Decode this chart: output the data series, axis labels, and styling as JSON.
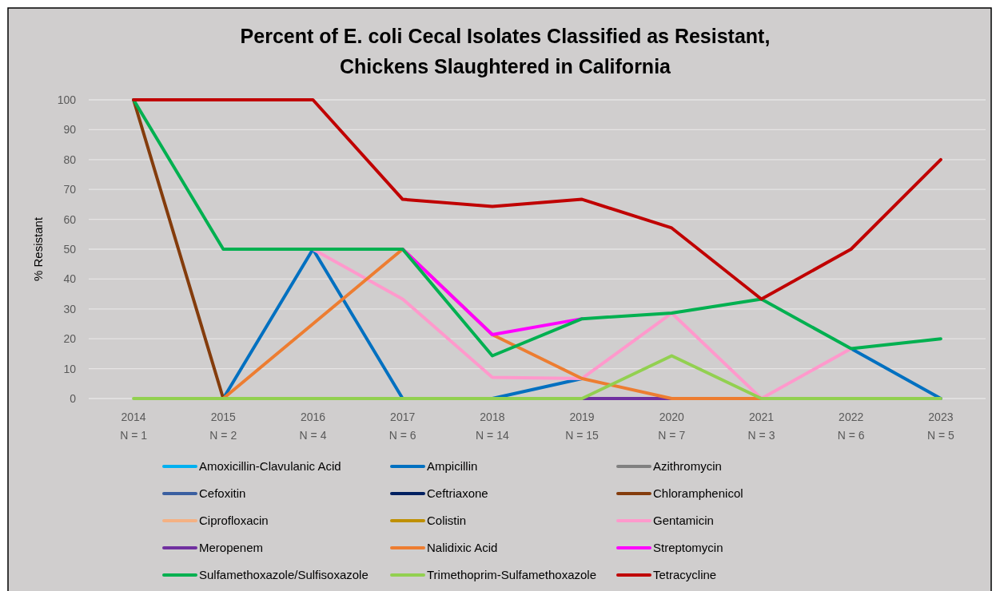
{
  "chart_data": {
    "type": "line",
    "title": "Percent of E. coli Cecal Isolates Classified as Resistant,\nChickens Slaughtered in California",
    "ylabel": "% Resistant",
    "categories": [
      "2014\nN = 1",
      "2015\nN = 2",
      "2016\nN = 4",
      "2017\nN = 6",
      "2018\nN = 14",
      "2019\nN = 15",
      "2020\nN = 7",
      "2021\nN = 3",
      "2022\nN = 6",
      "2023\nN = 5"
    ],
    "ylim": [
      0,
      100
    ],
    "yticks": [
      0,
      10,
      20,
      30,
      40,
      50,
      60,
      70,
      80,
      90,
      100
    ],
    "grid": "y",
    "legend": "bottom",
    "line_style": "solid",
    "series": [
      {
        "name": "Amoxicillin-Clavulanic Acid",
        "color": "#00b0f0",
        "values": [
          null,
          null,
          null,
          null,
          null,
          null,
          null,
          null,
          null,
          null
        ]
      },
      {
        "name": "Ampicillin",
        "color": "#0070c0",
        "values": [
          null,
          0,
          50,
          0,
          0,
          6.7,
          null,
          null,
          16.7,
          0
        ]
      },
      {
        "name": "Azithromycin",
        "color": "#808080",
        "values": [
          null,
          null,
          null,
          null,
          null,
          null,
          null,
          null,
          null,
          null
        ]
      },
      {
        "name": "Cefoxitin",
        "color": "#3a5fa0",
        "values": [
          null,
          null,
          null,
          null,
          null,
          null,
          null,
          null,
          null,
          null
        ]
      },
      {
        "name": "Ceftriaxone",
        "color": "#002060",
        "values": [
          null,
          null,
          null,
          null,
          null,
          null,
          null,
          null,
          null,
          null
        ]
      },
      {
        "name": "Chloramphenicol",
        "color": "#843c0c",
        "values": [
          100,
          0,
          null,
          null,
          null,
          null,
          null,
          null,
          null,
          null
        ]
      },
      {
        "name": "Ciprofloxacin",
        "color": "#f4b183",
        "values": [
          null,
          null,
          null,
          null,
          null,
          null,
          null,
          null,
          null,
          null
        ]
      },
      {
        "name": "Colistin",
        "color": "#bf9000",
        "values": [
          null,
          null,
          null,
          null,
          null,
          null,
          null,
          null,
          null,
          null
        ]
      },
      {
        "name": "Gentamicin",
        "color": "#ff99cc",
        "values": [
          null,
          null,
          50,
          33.3,
          7.1,
          6.7,
          28.6,
          0,
          16.7,
          null
        ]
      },
      {
        "name": "Meropenem",
        "color": "#7030a0",
        "values": [
          null,
          null,
          null,
          null,
          null,
          0,
          0,
          null,
          null,
          null
        ]
      },
      {
        "name": "Nalidixic Acid",
        "color": "#ed7d31",
        "values": [
          null,
          0,
          25,
          50,
          21.4,
          6.7,
          0,
          0,
          null,
          null
        ]
      },
      {
        "name": "Streptomycin",
        "color": "#ff00ff",
        "values": [
          null,
          null,
          null,
          50,
          21.4,
          26.7,
          null,
          null,
          null,
          null
        ]
      },
      {
        "name": "Sulfamethoxazole/Sulfisoxazole",
        "color": "#00b050",
        "values": [
          100,
          50,
          50,
          50,
          14.3,
          26.7,
          28.6,
          33.3,
          16.7,
          20
        ]
      },
      {
        "name": "Trimethoprim-Sulfamethoxazole",
        "color": "#92d050",
        "values": [
          0,
          0,
          0,
          0,
          0,
          0,
          14.3,
          0,
          0,
          0
        ]
      },
      {
        "name": "Tetracycline",
        "color": "#c00000",
        "values": [
          100,
          100,
          100,
          66.7,
          64.3,
          66.7,
          57.1,
          33.3,
          50,
          80
        ]
      }
    ]
  }
}
